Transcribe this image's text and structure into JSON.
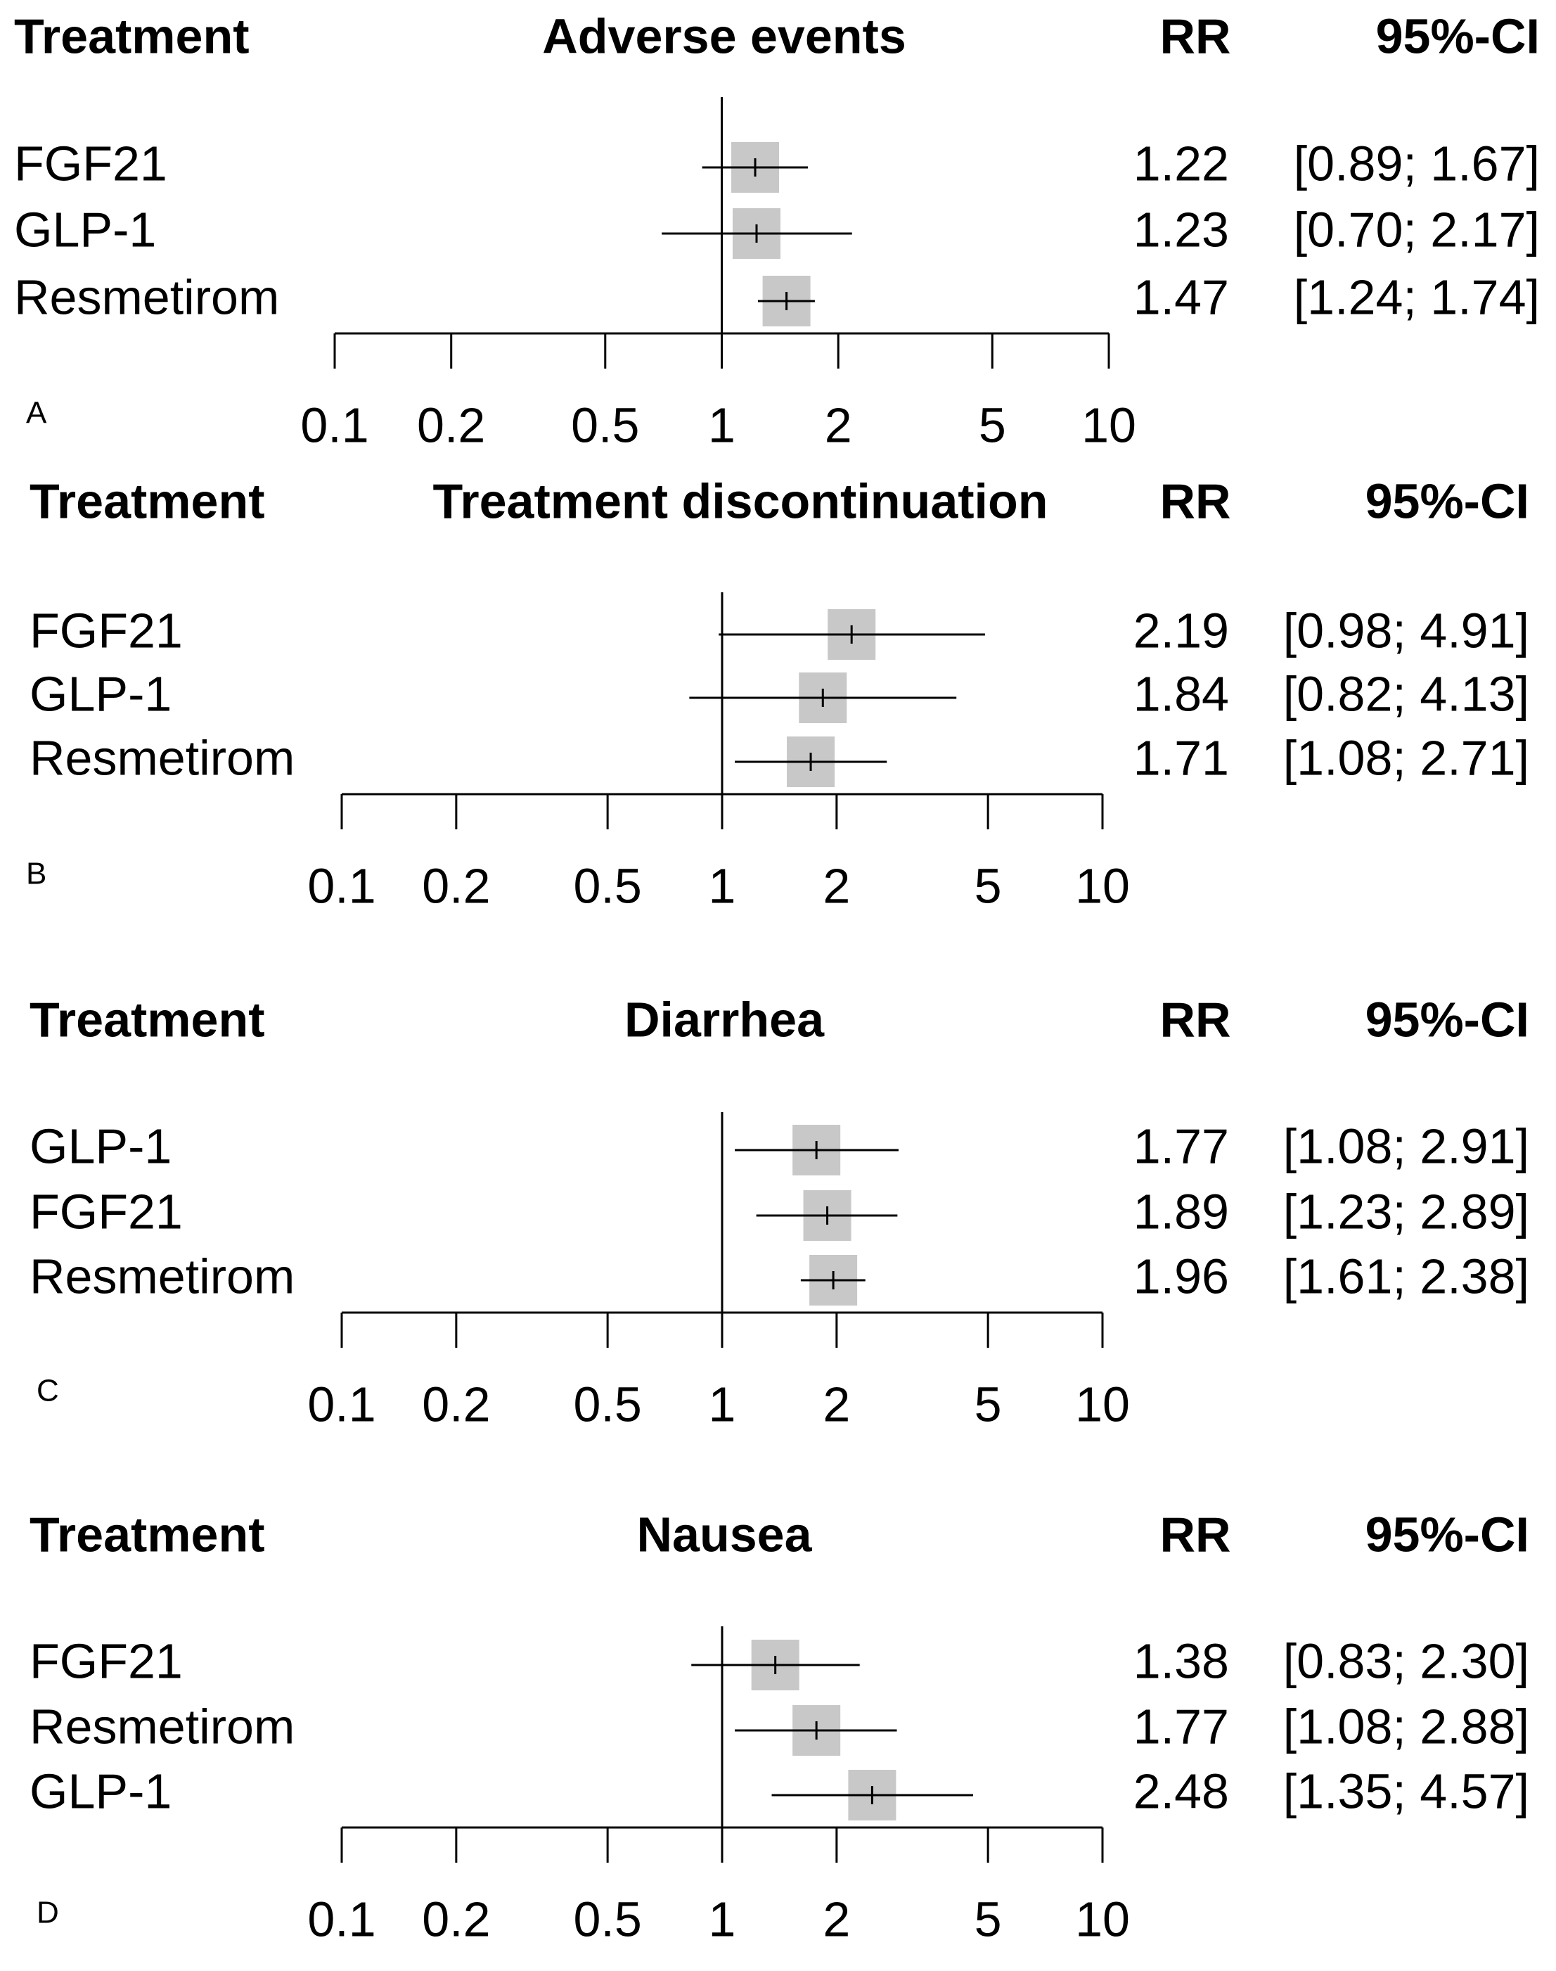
{
  "chart_data": [
    {
      "type": "forest",
      "panel": "A",
      "title": "Adverse events",
      "headers": {
        "treatment": "Treatment",
        "effect": "RR",
        "ci": "95%-CI"
      },
      "scale": "log",
      "xlim": [
        0.1,
        10
      ],
      "ticks": [
        0.1,
        0.2,
        0.5,
        1,
        2,
        5,
        10
      ],
      "tick_labels": [
        "0.1",
        "0.2",
        "0.5",
        "1",
        "2",
        "5",
        "10"
      ],
      "reference_line": 1,
      "rows": [
        {
          "label": "FGF21",
          "rr": 1.22,
          "lower": 0.89,
          "upper": 1.67,
          "rr_text": "1.22",
          "ci_text": "[0.89; 1.67]"
        },
        {
          "label": "GLP-1",
          "rr": 1.23,
          "lower": 0.7,
          "upper": 2.17,
          "rr_text": "1.23",
          "ci_text": "[0.70; 2.17]"
        },
        {
          "label": "Resmetirom",
          "rr": 1.47,
          "lower": 1.24,
          "upper": 1.74,
          "rr_text": "1.47",
          "ci_text": "[1.24; 1.74]"
        }
      ]
    },
    {
      "type": "forest",
      "panel": "B",
      "title": "Treatment discontinuation",
      "headers": {
        "treatment": "Treatment",
        "effect": "RR",
        "ci": "95%-CI"
      },
      "scale": "log",
      "xlim": [
        0.1,
        10
      ],
      "ticks": [
        0.1,
        0.2,
        0.5,
        1,
        2,
        5,
        10
      ],
      "tick_labels": [
        "0.1",
        "0.2",
        "0.5",
        "1",
        "2",
        "5",
        "10"
      ],
      "reference_line": 1,
      "rows": [
        {
          "label": "FGF21",
          "rr": 2.19,
          "lower": 0.98,
          "upper": 4.91,
          "rr_text": "2.19",
          "ci_text": "[0.98; 4.91]"
        },
        {
          "label": "GLP-1",
          "rr": 1.84,
          "lower": 0.82,
          "upper": 4.13,
          "rr_text": "1.84",
          "ci_text": "[0.82; 4.13]"
        },
        {
          "label": "Resmetirom",
          "rr": 1.71,
          "lower": 1.08,
          "upper": 2.71,
          "rr_text": "1.71",
          "ci_text": "[1.08; 2.71]"
        }
      ]
    },
    {
      "type": "forest",
      "panel": "C",
      "title": "Diarrhea",
      "headers": {
        "treatment": "Treatment",
        "effect": "RR",
        "ci": "95%-CI"
      },
      "scale": "log",
      "xlim": [
        0.1,
        10
      ],
      "ticks": [
        0.1,
        0.2,
        0.5,
        1,
        2,
        5,
        10
      ],
      "tick_labels": [
        "0.1",
        "0.2",
        "0.5",
        "1",
        "2",
        "5",
        "10"
      ],
      "reference_line": 1,
      "rows": [
        {
          "label": "GLP-1",
          "rr": 1.77,
          "lower": 1.08,
          "upper": 2.91,
          "rr_text": "1.77",
          "ci_text": "[1.08; 2.91]"
        },
        {
          "label": "FGF21",
          "rr": 1.89,
          "lower": 1.23,
          "upper": 2.89,
          "rr_text": "1.89",
          "ci_text": "[1.23; 2.89]"
        },
        {
          "label": "Resmetirom",
          "rr": 1.96,
          "lower": 1.61,
          "upper": 2.38,
          "rr_text": "1.96",
          "ci_text": "[1.61; 2.38]"
        }
      ]
    },
    {
      "type": "forest",
      "panel": "D",
      "title": "Nausea",
      "headers": {
        "treatment": "Treatment",
        "effect": "RR",
        "ci": "95%-CI"
      },
      "scale": "log",
      "xlim": [
        0.1,
        10
      ],
      "ticks": [
        0.1,
        0.2,
        0.5,
        1,
        2,
        5,
        10
      ],
      "tick_labels": [
        "0.1",
        "0.2",
        "0.5",
        "1",
        "2",
        "5",
        "10"
      ],
      "reference_line": 1,
      "rows": [
        {
          "label": "FGF21",
          "rr": 1.38,
          "lower": 0.83,
          "upper": 2.3,
          "rr_text": "1.38",
          "ci_text": "[0.83; 2.30]"
        },
        {
          "label": "Resmetirom",
          "rr": 1.77,
          "lower": 1.08,
          "upper": 2.88,
          "rr_text": "1.77",
          "ci_text": "[1.08; 2.88]"
        },
        {
          "label": "GLP-1",
          "rr": 2.48,
          "lower": 1.35,
          "upper": 4.57,
          "rr_text": "2.48",
          "ci_text": "[1.35; 4.57]"
        }
      ]
    }
  ],
  "colors": {
    "box": "#c8c8c8",
    "line": "#000000"
  }
}
